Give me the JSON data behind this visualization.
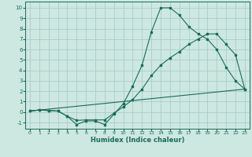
{
  "xlabel": "Humidex (Indice chaleur)",
  "xlim": [
    -0.5,
    23.5
  ],
  "ylim": [
    -1.6,
    10.6
  ],
  "xticks": [
    0,
    1,
    2,
    3,
    4,
    5,
    6,
    7,
    8,
    9,
    10,
    11,
    12,
    13,
    14,
    15,
    16,
    17,
    18,
    19,
    20,
    21,
    22,
    23
  ],
  "yticks": [
    -1,
    0,
    1,
    2,
    3,
    4,
    5,
    6,
    7,
    8,
    9,
    10
  ],
  "bg_color": "#cde8e0",
  "grid_color": "#a8cccc",
  "line_color": "#1a6b5a",
  "line1_x": [
    0,
    1,
    2,
    3,
    4,
    5,
    6,
    7,
    8,
    9,
    10,
    11,
    12,
    13,
    14,
    15,
    16,
    17,
    18,
    19,
    20,
    21,
    22,
    23
  ],
  "line1_y": [
    0.1,
    0.2,
    0.15,
    0.1,
    -0.4,
    -1.2,
    -0.85,
    -0.85,
    -1.2,
    -0.2,
    0.8,
    2.5,
    4.5,
    7.7,
    10.0,
    10.0,
    9.3,
    8.2,
    7.5,
    7.0,
    6.0,
    4.3,
    3.0,
    2.2
  ],
  "line2_x": [
    0,
    1,
    2,
    3,
    4,
    5,
    6,
    7,
    8,
    9,
    10,
    11,
    12,
    13,
    14,
    15,
    16,
    17,
    18,
    19,
    20,
    21,
    22,
    23
  ],
  "line2_y": [
    0.1,
    0.2,
    0.15,
    0.1,
    -0.4,
    -0.8,
    -0.75,
    -0.75,
    -0.75,
    -0.1,
    0.5,
    1.2,
    2.2,
    3.5,
    4.5,
    5.2,
    5.8,
    6.5,
    7.0,
    7.5,
    7.5,
    6.5,
    5.5,
    2.2
  ],
  "line3_x": [
    0,
    23
  ],
  "line3_y": [
    0.1,
    2.2
  ]
}
